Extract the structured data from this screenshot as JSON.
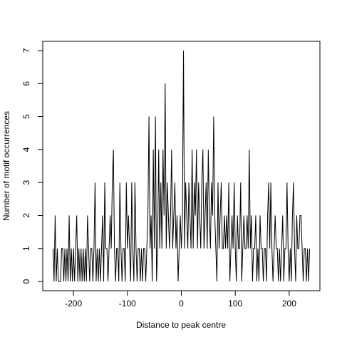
{
  "chart_data": {
    "type": "line",
    "xlabel": "Distance to peak centre",
    "ylabel": "Number of motif occurrences",
    "x": [
      -238,
      -236,
      -234,
      -232,
      -230,
      -228,
      -226,
      -224,
      -222,
      -220,
      -218,
      -216,
      -214,
      -212,
      -210,
      -208,
      -206,
      -204,
      -202,
      -200,
      -198,
      -196,
      -194,
      -192,
      -190,
      -188,
      -186,
      -184,
      -182,
      -180,
      -178,
      -176,
      -174,
      -172,
      -170,
      -168,
      -166,
      -164,
      -162,
      -160,
      -158,
      -156,
      -154,
      -152,
      -150,
      -148,
      -146,
      -144,
      -142,
      -140,
      -138,
      -136,
      -134,
      -132,
      -130,
      -128,
      -126,
      -124,
      -122,
      -120,
      -118,
      -116,
      -114,
      -112,
      -110,
      -108,
      -106,
      -104,
      -102,
      -100,
      -98,
      -96,
      -94,
      -92,
      -90,
      -88,
      -86,
      -84,
      -82,
      -80,
      -78,
      -76,
      -74,
      -72,
      -70,
      -68,
      -66,
      -64,
      -62,
      -60,
      -58,
      -56,
      -54,
      -52,
      -50,
      -48,
      -46,
      -44,
      -42,
      -40,
      -38,
      -36,
      -34,
      -32,
      -30,
      -28,
      -26,
      -24,
      -22,
      -20,
      -18,
      -16,
      -14,
      -12,
      -10,
      -8,
      -6,
      -4,
      -2,
      0,
      2,
      4,
      6,
      8,
      10,
      12,
      14,
      16,
      18,
      20,
      22,
      24,
      26,
      28,
      30,
      32,
      34,
      36,
      38,
      40,
      42,
      44,
      46,
      48,
      50,
      52,
      54,
      56,
      58,
      60,
      62,
      64,
      66,
      68,
      70,
      72,
      74,
      76,
      78,
      80,
      82,
      84,
      86,
      88,
      90,
      92,
      94,
      96,
      98,
      100,
      102,
      104,
      106,
      108,
      110,
      112,
      114,
      116,
      118,
      120,
      122,
      124,
      126,
      128,
      130,
      132,
      134,
      136,
      138,
      140,
      142,
      144,
      146,
      148,
      150,
      152,
      154,
      156,
      158,
      160,
      162,
      164,
      166,
      168,
      170,
      172,
      174,
      176,
      178,
      180,
      182,
      184,
      186,
      188,
      190,
      192,
      194,
      196,
      198,
      200,
      202,
      204,
      206,
      208,
      210,
      212,
      214,
      216,
      218,
      220,
      222,
      224,
      226,
      228,
      230,
      232,
      234,
      236,
      238
    ],
    "values": [
      1,
      0,
      2,
      0,
      1,
      0,
      0,
      0,
      1,
      1,
      0,
      1,
      0,
      1,
      0,
      2,
      0,
      1,
      0,
      1,
      0,
      1,
      2,
      0,
      1,
      0,
      1,
      0,
      1,
      0,
      1,
      0,
      2,
      1,
      0,
      1,
      1,
      0,
      1,
      3,
      0,
      1,
      0,
      1,
      0,
      1,
      2,
      0,
      3,
      1,
      1,
      0,
      1,
      2,
      1,
      3,
      4,
      1,
      0,
      1,
      1,
      0,
      3,
      1,
      0,
      1,
      1,
      0,
      3,
      1,
      2,
      1,
      0,
      3,
      1,
      0,
      3,
      1,
      0,
      1,
      1,
      0,
      1,
      0,
      1,
      1,
      0,
      1,
      2,
      5,
      1,
      2,
      0,
      4,
      1,
      5,
      0,
      1,
      4,
      1,
      3,
      1,
      4,
      2,
      6,
      1,
      3,
      2,
      1,
      2,
      4,
      1,
      2,
      3,
      1,
      2,
      0,
      1,
      2,
      1,
      2,
      7,
      1,
      3,
      2,
      1,
      3,
      2,
      1,
      4,
      1,
      3,
      2,
      4,
      1,
      3,
      2,
      1,
      3,
      4,
      1,
      2,
      3,
      1,
      4,
      2,
      1,
      3,
      2,
      5,
      2,
      1,
      0,
      3,
      1,
      2,
      3,
      1,
      1,
      2,
      1,
      2,
      1,
      3,
      0,
      1,
      2,
      1,
      3,
      1,
      0,
      2,
      1,
      1,
      3,
      0,
      1,
      2,
      1,
      1,
      2,
      1,
      4,
      1,
      2,
      0,
      1,
      1,
      2,
      0,
      1,
      0,
      2,
      1,
      1,
      0,
      1,
      1,
      0,
      2,
      3,
      1,
      3,
      1,
      0,
      1,
      2,
      1,
      1,
      0,
      1,
      0,
      1,
      2,
      0,
      1,
      1,
      3,
      1,
      0,
      1,
      0,
      2,
      3,
      1,
      0,
      2,
      1,
      1,
      2,
      2,
      1,
      0,
      1,
      1,
      0,
      1,
      0,
      1
    ],
    "color": "#000000",
    "xlim": [
      -257,
      257
    ],
    "xticks": [
      -200,
      -100,
      0,
      100,
      200
    ],
    "ylim": [
      -0.28,
      7.28
    ],
    "yticks": [
      0,
      1,
      2,
      3,
      4,
      5,
      6,
      7
    ]
  }
}
